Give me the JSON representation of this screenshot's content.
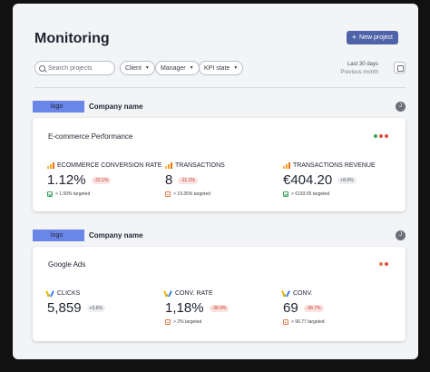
{
  "header": {
    "title": "Monitoring",
    "new_button_label": "New project"
  },
  "filters": {
    "search_placeholder": "Search projects",
    "client": "Client",
    "manager": "Manager",
    "kpi_state": "KPI state",
    "period_main": "Last 30 days",
    "period_sub": "Previous month"
  },
  "companies": [
    {
      "logo": "logo",
      "name": "Company name",
      "avatar": "J",
      "card": {
        "title": "E-commerce Performance",
        "dots": [
          "#3aa35a",
          "#e04b3a",
          "#e04b3a"
        ],
        "metrics": [
          {
            "icon": "google-analytics-icon",
            "label": "ECOMMERCE CONVERSION RATE",
            "value": "1.12%",
            "delta": "-22.1%",
            "delta_positive": false,
            "target_state": "ok",
            "target": "> 1.00% targeted"
          },
          {
            "icon": "google-analytics-icon",
            "label": "TRANSACTIONS",
            "value": "8",
            "delta": "-11.1%",
            "delta_positive": false,
            "target_state": "warn",
            "target": "> 19.35% targeted"
          },
          {
            "icon": "google-analytics-icon",
            "label": "TRANSACTIONS REVENUE",
            "value": "€404.20",
            "delta": "+8.6%",
            "delta_positive": true,
            "target_state": "ok",
            "target": "> €193.55 targeted"
          }
        ]
      }
    },
    {
      "logo": "logo",
      "name": "Company name",
      "avatar": "J",
      "card": {
        "title": "Google Ads",
        "dots": [
          "#e07b4b",
          "#e04b3a"
        ],
        "metrics": [
          {
            "icon": "google-ads-icon",
            "label": "CLICKS",
            "value": "5,859",
            "delta": "+3.6%",
            "delta_positive": true,
            "target_state": "none",
            "target": ""
          },
          {
            "icon": "google-ads-icon",
            "label": "CONV. RATE",
            "value": "1,18%",
            "delta": "-38.9%",
            "delta_positive": false,
            "target_state": "warn",
            "target": "> 2% targeted"
          },
          {
            "icon": "google-ads-icon",
            "label": "CONV.",
            "value": "69",
            "delta": "-36.7%",
            "delta_positive": false,
            "target_state": "warn",
            "target": "> 96.77 targeted"
          }
        ]
      }
    }
  ]
}
